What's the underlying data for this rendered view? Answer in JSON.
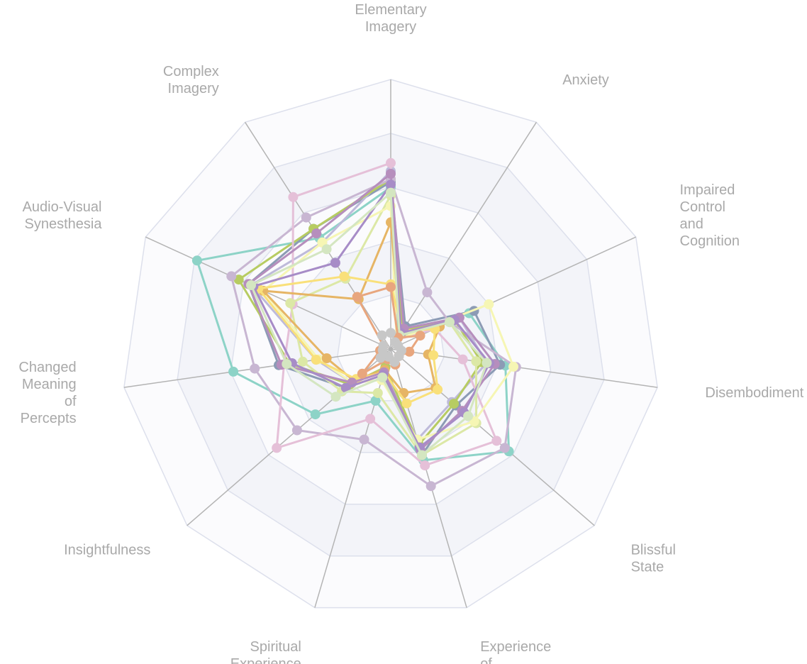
{
  "chart_data": {
    "type": "radar",
    "title": "",
    "axes": [
      "Elementary Imagery",
      "Anxiety",
      "Impaired Control and Cognition",
      "Disembodiment",
      "Blissful State",
      "Experience of Unity",
      "Spiritual Experience",
      "Insightfulness",
      "Changed Meaning of Percepts",
      "Audio-Visual Synesthesia",
      "Complex Imagery"
    ],
    "range": [
      0,
      100
    ],
    "grid_rings": 5,
    "grid": true,
    "legend": "none",
    "colors": {
      "grid_line": "#dde0ec",
      "spoke": "#b4b4b4",
      "band_even": "#f3f4f9",
      "band_odd": "#fbfbfd",
      "label": "#a9a9a9"
    },
    "series": [
      {
        "color": "#8dd3c7",
        "values": [
          60,
          5,
          32,
          43,
          58,
          43,
          20,
          37,
          59,
          79,
          49
        ]
      },
      {
        "color": "#8c9bb5",
        "values": [
          62,
          10,
          34,
          41,
          32,
          41,
          7,
          22,
          42,
          58,
          53
        ]
      },
      {
        "color": "#bebada",
        "values": [
          66,
          8,
          28,
          36,
          30,
          35,
          8,
          19,
          28,
          57,
          47
        ]
      },
      {
        "color": "#b7cc62",
        "values": [
          63,
          8,
          26,
          34,
          31,
          37,
          7,
          20,
          38,
          62,
          53
        ]
      },
      {
        "color": "#c8b6d2",
        "values": [
          63,
          25,
          24,
          47,
          56,
          53,
          35,
          46,
          51,
          65,
          58
        ]
      },
      {
        "color": "#e5c0d8",
        "values": [
          69,
          4,
          18,
          27,
          52,
          45,
          27,
          56,
          40,
          40,
          67
        ]
      },
      {
        "color": "#dce8a6",
        "values": [
          57,
          6,
          24,
          32,
          42,
          41,
          17,
          24,
          33,
          41,
          31
        ]
      },
      {
        "color": "#f6f6b4",
        "values": [
          53,
          4,
          40,
          46,
          41,
          35,
          12,
          19,
          27,
          52,
          47
        ]
      },
      {
        "color": "#e6b565",
        "values": [
          47,
          7,
          20,
          14,
          22,
          17,
          8,
          18,
          24,
          52,
          22
        ]
      },
      {
        "color": "#f9e07a",
        "values": [
          24,
          8,
          18,
          16,
          23,
          21,
          9,
          17,
          28,
          54,
          32
        ]
      },
      {
        "color": "#b68ebd",
        "values": [
          65,
          9,
          28,
          39,
          35,
          39,
          9,
          19,
          41,
          58,
          51
        ]
      },
      {
        "color": "#a78cc7",
        "values": [
          61,
          7,
          26,
          37,
          36,
          38,
          10,
          22,
          37,
          56,
          38
        ]
      },
      {
        "color": "#d4e6c1",
        "values": [
          58,
          6,
          24,
          36,
          38,
          41,
          11,
          27,
          39,
          57,
          44
        ]
      },
      {
        "color": "#e8a67e",
        "values": [
          23,
          5,
          12,
          7,
          4,
          6,
          4,
          14,
          4,
          3,
          23
        ]
      },
      {
        "color": "#c7c7c7",
        "values": [
          6,
          3,
          3,
          4,
          4,
          5,
          3,
          5,
          3,
          3,
          6
        ]
      }
    ]
  }
}
